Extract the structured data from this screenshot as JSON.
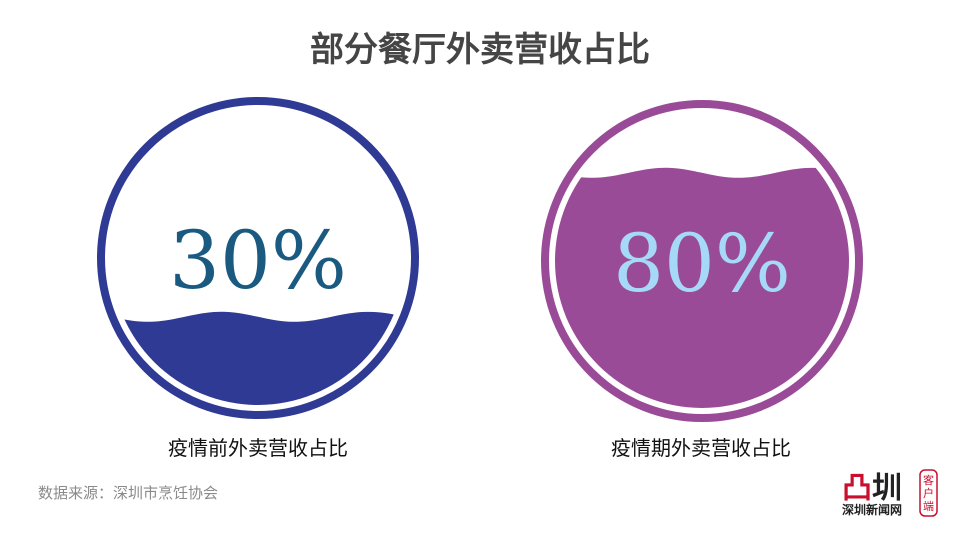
{
  "title": "部分餐厅外卖营收占比",
  "chart_data": {
    "type": "liquid-fill gauge",
    "title": "部分餐厅外卖营收占比",
    "gauges": [
      {
        "label": "疫情前外卖营收占比",
        "value": 30,
        "display": "30%",
        "color": "#2e3a93",
        "text_color": "#1a5a80"
      },
      {
        "label": "疫情期外卖营收占比",
        "value": 80,
        "display": "80%",
        "color": "#9a4b97",
        "text_color": "#a6d9f5"
      }
    ]
  },
  "source": "数据来源：深圳市烹饪协会",
  "logo": {
    "text": "深圳新闻网",
    "badge": "客户端"
  }
}
